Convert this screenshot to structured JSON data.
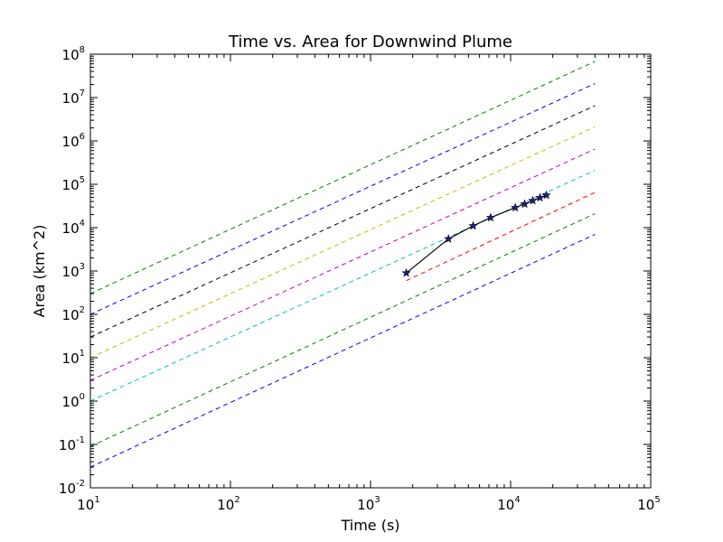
{
  "chart_data": {
    "type": "line",
    "title": "Time vs. Area for Downwind Plume",
    "xlabel": "Time (s)",
    "ylabel": "Area (km^2)",
    "xscale": "log",
    "yscale": "log",
    "xlim": [
      10,
      100000
    ],
    "ylim": [
      0.01,
      100000000
    ],
    "grid": false,
    "x_ticks": [
      {
        "base": "10",
        "exp": "1",
        "value": 10
      },
      {
        "base": "10",
        "exp": "2",
        "value": 100
      },
      {
        "base": "10",
        "exp": "3",
        "value": 1000
      },
      {
        "base": "10",
        "exp": "4",
        "value": 10000
      },
      {
        "base": "10",
        "exp": "5",
        "value": 100000
      }
    ],
    "y_ticks": [
      {
        "base": "10",
        "exp": "-2",
        "value": 0.01
      },
      {
        "base": "10",
        "exp": "-1",
        "value": 0.1
      },
      {
        "base": "10",
        "exp": "0",
        "value": 1
      },
      {
        "base": "10",
        "exp": "1",
        "value": 10
      },
      {
        "base": "10",
        "exp": "2",
        "value": 100
      },
      {
        "base": "10",
        "exp": "3",
        "value": 1000
      },
      {
        "base": "10",
        "exp": "4",
        "value": 10000
      },
      {
        "base": "10",
        "exp": "5",
        "value": 100000
      },
      {
        "base": "10",
        "exp": "6",
        "value": 1000000
      },
      {
        "base": "10",
        "exp": "7",
        "value": 10000000
      },
      {
        "base": "10",
        "exp": "8",
        "value": 100000000
      }
    ],
    "reference_lines": [
      {
        "color": "#0000ff",
        "x": [
          10,
          40000
        ],
        "y": [
          0.03,
          7000
        ]
      },
      {
        "color": "#008000",
        "x": [
          10,
          40000
        ],
        "y": [
          0.09,
          21000
        ]
      },
      {
        "color": "#ff0000",
        "x": [
          1800,
          40000
        ],
        "y": [
          600,
          65000
        ]
      },
      {
        "color": "#00bfbf",
        "x": [
          10,
          40000
        ],
        "y": [
          1.0,
          210000
        ]
      },
      {
        "color": "#bf00bf",
        "x": [
          10,
          40000
        ],
        "y": [
          3.0,
          650000
        ]
      },
      {
        "color": "#bfbf00",
        "x": [
          10,
          40000
        ],
        "y": [
          10,
          2100000
        ]
      },
      {
        "color": "#000000",
        "x": [
          10,
          40000
        ],
        "y": [
          30,
          6500000
        ]
      },
      {
        "color": "#0000ff",
        "x": [
          10,
          40000
        ],
        "y": [
          100,
          21000000
        ]
      },
      {
        "color": "#008000",
        "x": [
          10,
          40000
        ],
        "y": [
          300,
          68000000
        ]
      }
    ],
    "series": [
      {
        "color": "#000000",
        "marker": "star",
        "x": [
          1800,
          3600,
          5400,
          7200,
          10800,
          12600,
          14400,
          16200,
          18000
        ],
        "y": [
          900,
          5500,
          11000,
          17000,
          29000,
          35000,
          42000,
          49000,
          56000
        ]
      }
    ]
  }
}
